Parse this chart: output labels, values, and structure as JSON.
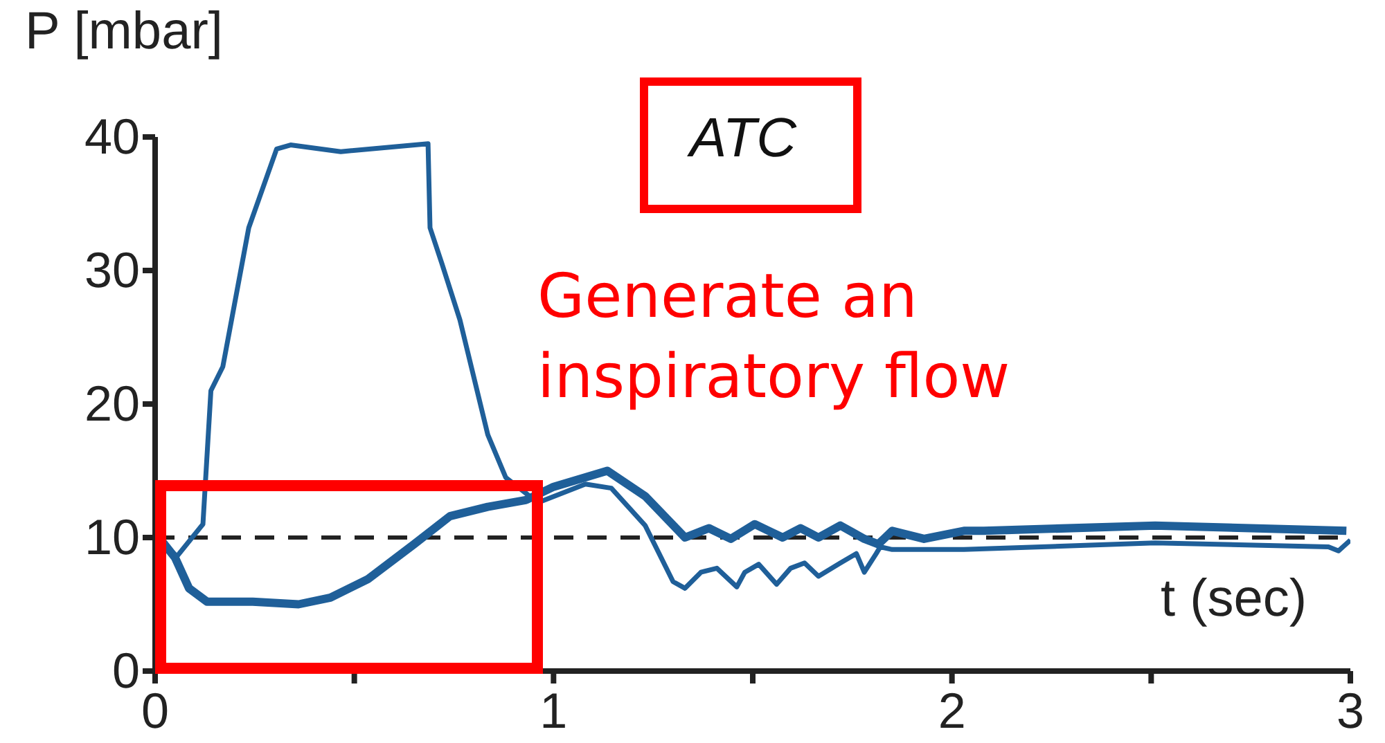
{
  "chart_data": {
    "type": "line",
    "title": "ATC",
    "xlabel": "t (sec)",
    "ylabel": "P [mbar]",
    "annotations": [
      "Generate an inspiratory flow"
    ],
    "xlim": [
      0,
      3
    ],
    "xticks": [
      0,
      {
        "value": 0.5,
        "label": null
      },
      1,
      {
        "value": 1.5,
        "label": null
      },
      2,
      {
        "value": 2.5,
        "label": null
      },
      3
    ],
    "ylim": [
      0,
      40
    ],
    "yticks": [
      0,
      10,
      20,
      30,
      40
    ],
    "grid": false,
    "legend": false,
    "marker": "none",
    "line_style": "solid",
    "ref_lines": [
      {
        "axis": "y",
        "value": 10,
        "color": "#222222",
        "line_style": "dashed"
      }
    ],
    "series": [
      {
        "color": "#1f5f99",
        "x": [
          0.01,
          0.05,
          0.085,
          0.13,
          0.245,
          0.36,
          0.44,
          0.535,
          0.65,
          0.74,
          0.835,
          0.93,
          1.0,
          1.135,
          1.23,
          1.33,
          1.39,
          1.445,
          1.505,
          1.575,
          1.62,
          1.665,
          1.72,
          1.78,
          1.815,
          1.85,
          1.93,
          2.03,
          2.08,
          2.51,
          2.99
        ],
        "values": [
          10.0,
          8.5,
          6.2,
          5.2,
          5.2,
          5.0,
          5.5,
          6.9,
          9.5,
          11.6,
          12.3,
          12.8,
          13.8,
          15.0,
          13.1,
          10.0,
          10.7,
          9.9,
          11.0,
          10.0,
          10.7,
          10.0,
          10.9,
          9.9,
          9.5,
          10.5,
          9.9,
          10.5,
          10.5,
          10.9,
          10.5
        ]
      },
      {
        "color": "#1f5f99",
        "x": [
          0.02,
          0.055,
          0.12,
          0.14,
          0.17,
          0.235,
          0.305,
          0.34,
          0.466,
          0.685,
          0.69,
          0.72,
          0.765,
          0.835,
          0.88,
          0.94,
          0.96,
          1.08,
          1.145,
          1.23,
          1.3,
          1.33,
          1.37,
          1.41,
          1.46,
          1.48,
          1.515,
          1.56,
          1.595,
          1.63,
          1.665,
          1.72,
          1.76,
          1.78,
          1.81,
          1.82,
          1.85,
          2.03,
          2.51,
          2.945,
          2.97,
          3.0
        ],
        "values": [
          9.5,
          8.6,
          11.0,
          21.0,
          22.8,
          33.2,
          39.1,
          39.4,
          38.9,
          39.5,
          33.2,
          30.5,
          26.3,
          17.7,
          14.5,
          13.1,
          12.6,
          14.0,
          13.7,
          10.9,
          6.7,
          6.2,
          7.4,
          7.7,
          6.3,
          7.4,
          8.0,
          6.5,
          7.7,
          8.1,
          7.1,
          8.1,
          8.8,
          7.4,
          8.8,
          9.3,
          9.1,
          9.1,
          9.6,
          9.3,
          9.0,
          9.8
        ]
      }
    ]
  }
}
